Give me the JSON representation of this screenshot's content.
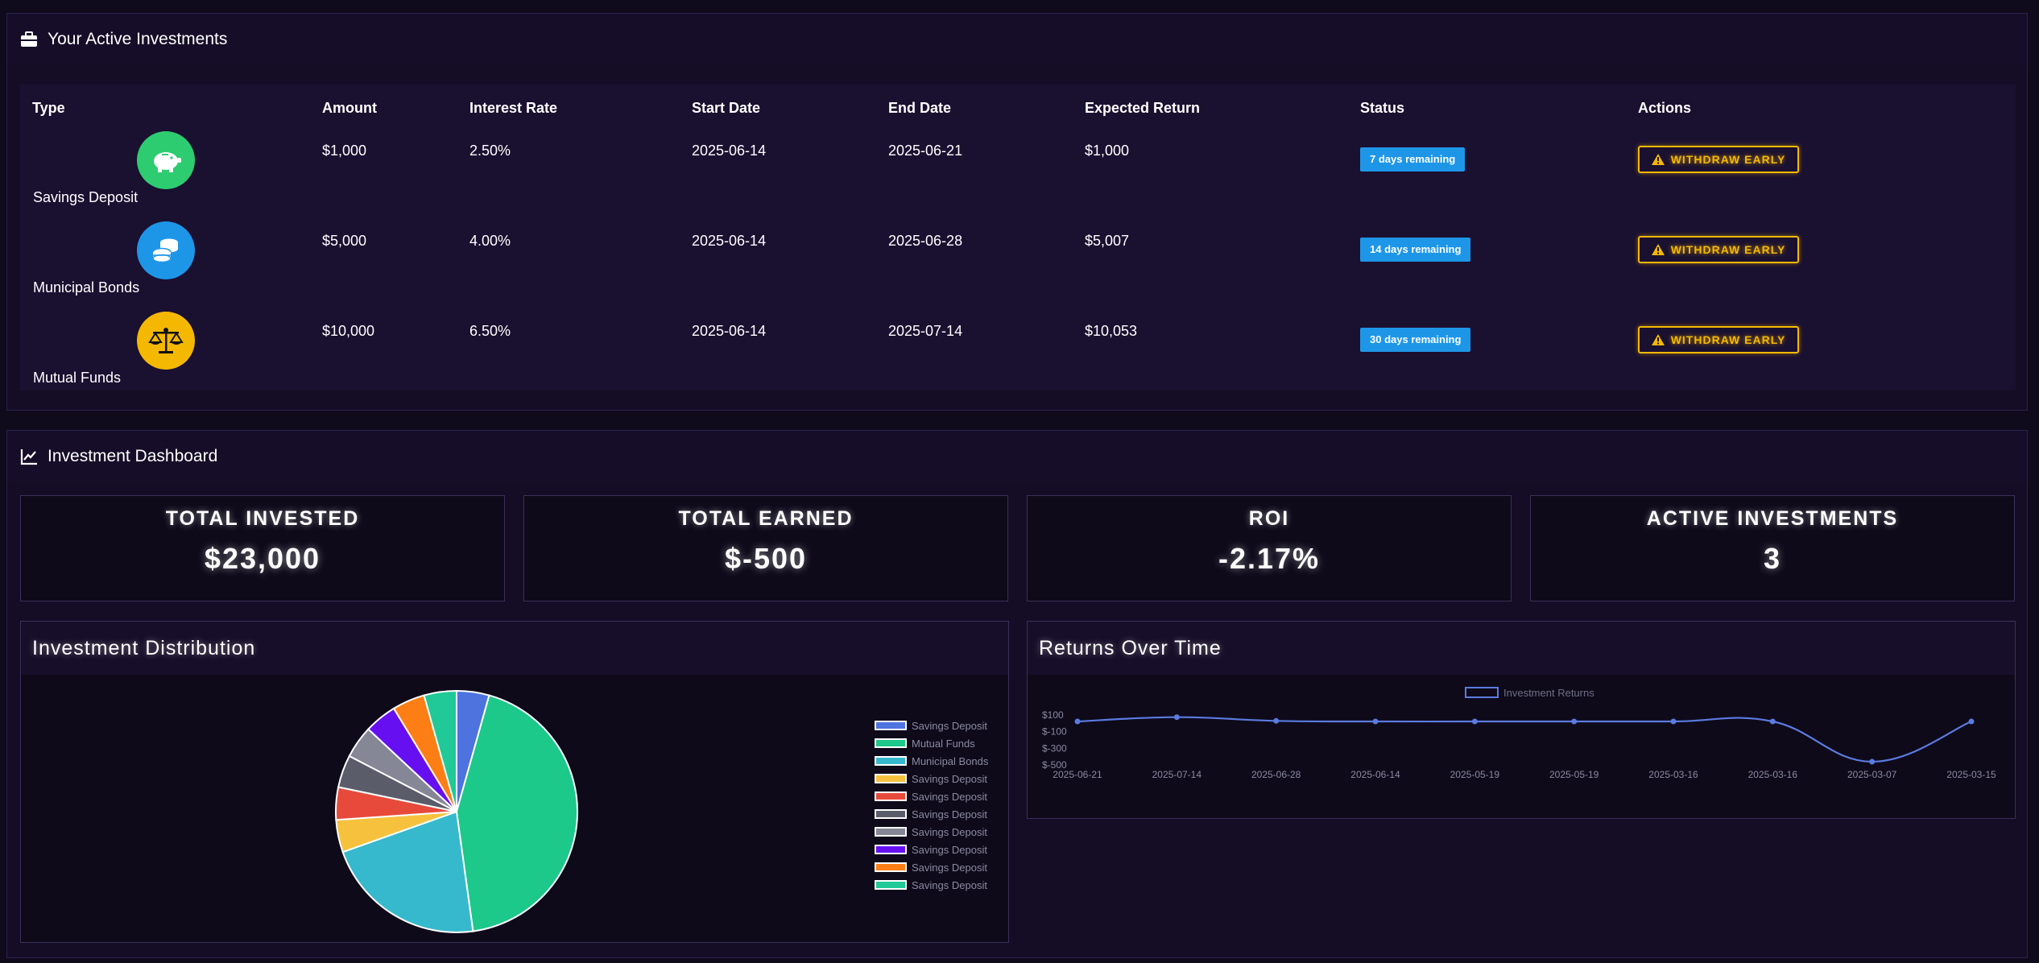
{
  "investments_panel": {
    "title": "Your Active Investments",
    "columns": [
      "Type",
      "Amount",
      "Interest Rate",
      "Start Date",
      "End Date",
      "Expected Return",
      "Status",
      "Actions"
    ],
    "rows": [
      {
        "type": "Savings Deposit",
        "icon": "piggy-bank-icon",
        "icon_color": "#2ecc71",
        "amount": "$1,000",
        "rate": "2.50%",
        "start": "2025-06-14",
        "end": "2025-06-21",
        "expected": "$1,000",
        "status": "7 days remaining",
        "action": "WITHDRAW EARLY"
      },
      {
        "type": "Municipal Bonds",
        "icon": "coins-icon",
        "icon_color": "#1e96e8",
        "amount": "$5,000",
        "rate": "4.00%",
        "start": "2025-06-14",
        "end": "2025-06-28",
        "expected": "$5,007",
        "status": "14 days remaining",
        "action": "WITHDRAW EARLY"
      },
      {
        "type": "Mutual Funds",
        "icon": "balance-scale-icon",
        "icon_color": "#f5b800",
        "amount": "$10,000",
        "rate": "6.50%",
        "start": "2025-06-14",
        "end": "2025-07-14",
        "expected": "$10,053",
        "status": "30 days remaining",
        "action": "WITHDRAW EARLY"
      }
    ]
  },
  "dashboard": {
    "title": "Investment Dashboard",
    "stats": [
      {
        "label": "TOTAL INVESTED",
        "value": "$23,000"
      },
      {
        "label": "TOTAL EARNED",
        "value": "$-500"
      },
      {
        "label": "ROI",
        "value": "-2.17%"
      },
      {
        "label": "ACTIVE INVESTMENTS",
        "value": "3"
      }
    ],
    "distribution_title": "Investment Distribution",
    "returns_title": "Returns Over Time"
  },
  "colors": {
    "accent_warning": "#f5b800",
    "badge": "#1e96e8",
    "line": "#5b7be0"
  },
  "chart_data": [
    {
      "type": "pie",
      "title": "Investment Distribution",
      "legend_position": "right",
      "categories": [
        "Savings Deposit",
        "Mutual Funds",
        "Municipal Bonds",
        "Savings Deposit",
        "Savings Deposit",
        "Savings Deposit",
        "Savings Deposit",
        "Savings Deposit",
        "Savings Deposit",
        "Savings Deposit"
      ],
      "values": [
        1000,
        10000,
        5000,
        1000,
        1000,
        1000,
        1000,
        1000,
        1000,
        1000
      ],
      "colors": [
        "#4e73df",
        "#1cc88a",
        "#36b9cc",
        "#f6c23e",
        "#e74a3b",
        "#5a5c69",
        "#858796",
        "#6610f2",
        "#fd7e14",
        "#20c997"
      ]
    },
    {
      "type": "line",
      "title": "Returns Over Time",
      "legend_position": "top",
      "categories": [
        "2025-06-21",
        "2025-07-14",
        "2025-06-28",
        "2025-06-14",
        "2025-05-19",
        "2025-05-19",
        "2025-03-16",
        "2025-03-16",
        "2025-03-07",
        "2025-03-15"
      ],
      "series": [
        {
          "name": "Investment Returns",
          "values": [
            0,
            53,
            7,
            0,
            0,
            0,
            0,
            0,
            -500,
            0
          ]
        }
      ],
      "y_ticks": [
        "$100",
        "$-100",
        "$-300",
        "$-500"
      ],
      "ylim": [
        -500,
        100
      ],
      "grid": false
    }
  ]
}
